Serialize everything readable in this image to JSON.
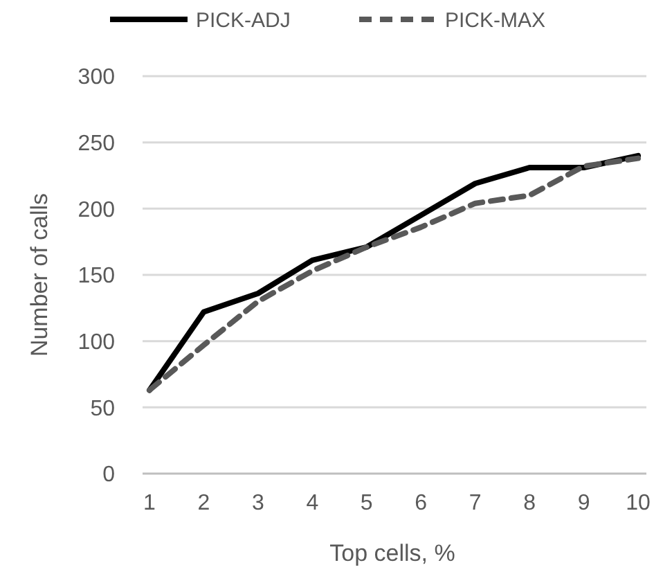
{
  "chart_data": {
    "type": "line",
    "xlabel": "Top cells, %",
    "ylabel": "Number of calls",
    "categories": [
      "1",
      "2",
      "3",
      "4",
      "5",
      "6",
      "7",
      "8",
      "9",
      "10"
    ],
    "series": [
      {
        "name": "PICK-ADJ",
        "color": "#000000",
        "line_style": "solid",
        "values": [
          63,
          122,
          136,
          161,
          171,
          195,
          219,
          231,
          231,
          240
        ]
      },
      {
        "name": "PICK-MAX",
        "color": "#595959",
        "line_style": "dashed",
        "values": [
          63,
          97,
          130,
          153,
          171,
          186,
          204,
          210,
          232,
          238
        ]
      }
    ],
    "ylim": [
      0,
      300
    ],
    "yticks": [
      0,
      50,
      100,
      150,
      200,
      250,
      300
    ],
    "grid": "y",
    "legend": "top"
  }
}
